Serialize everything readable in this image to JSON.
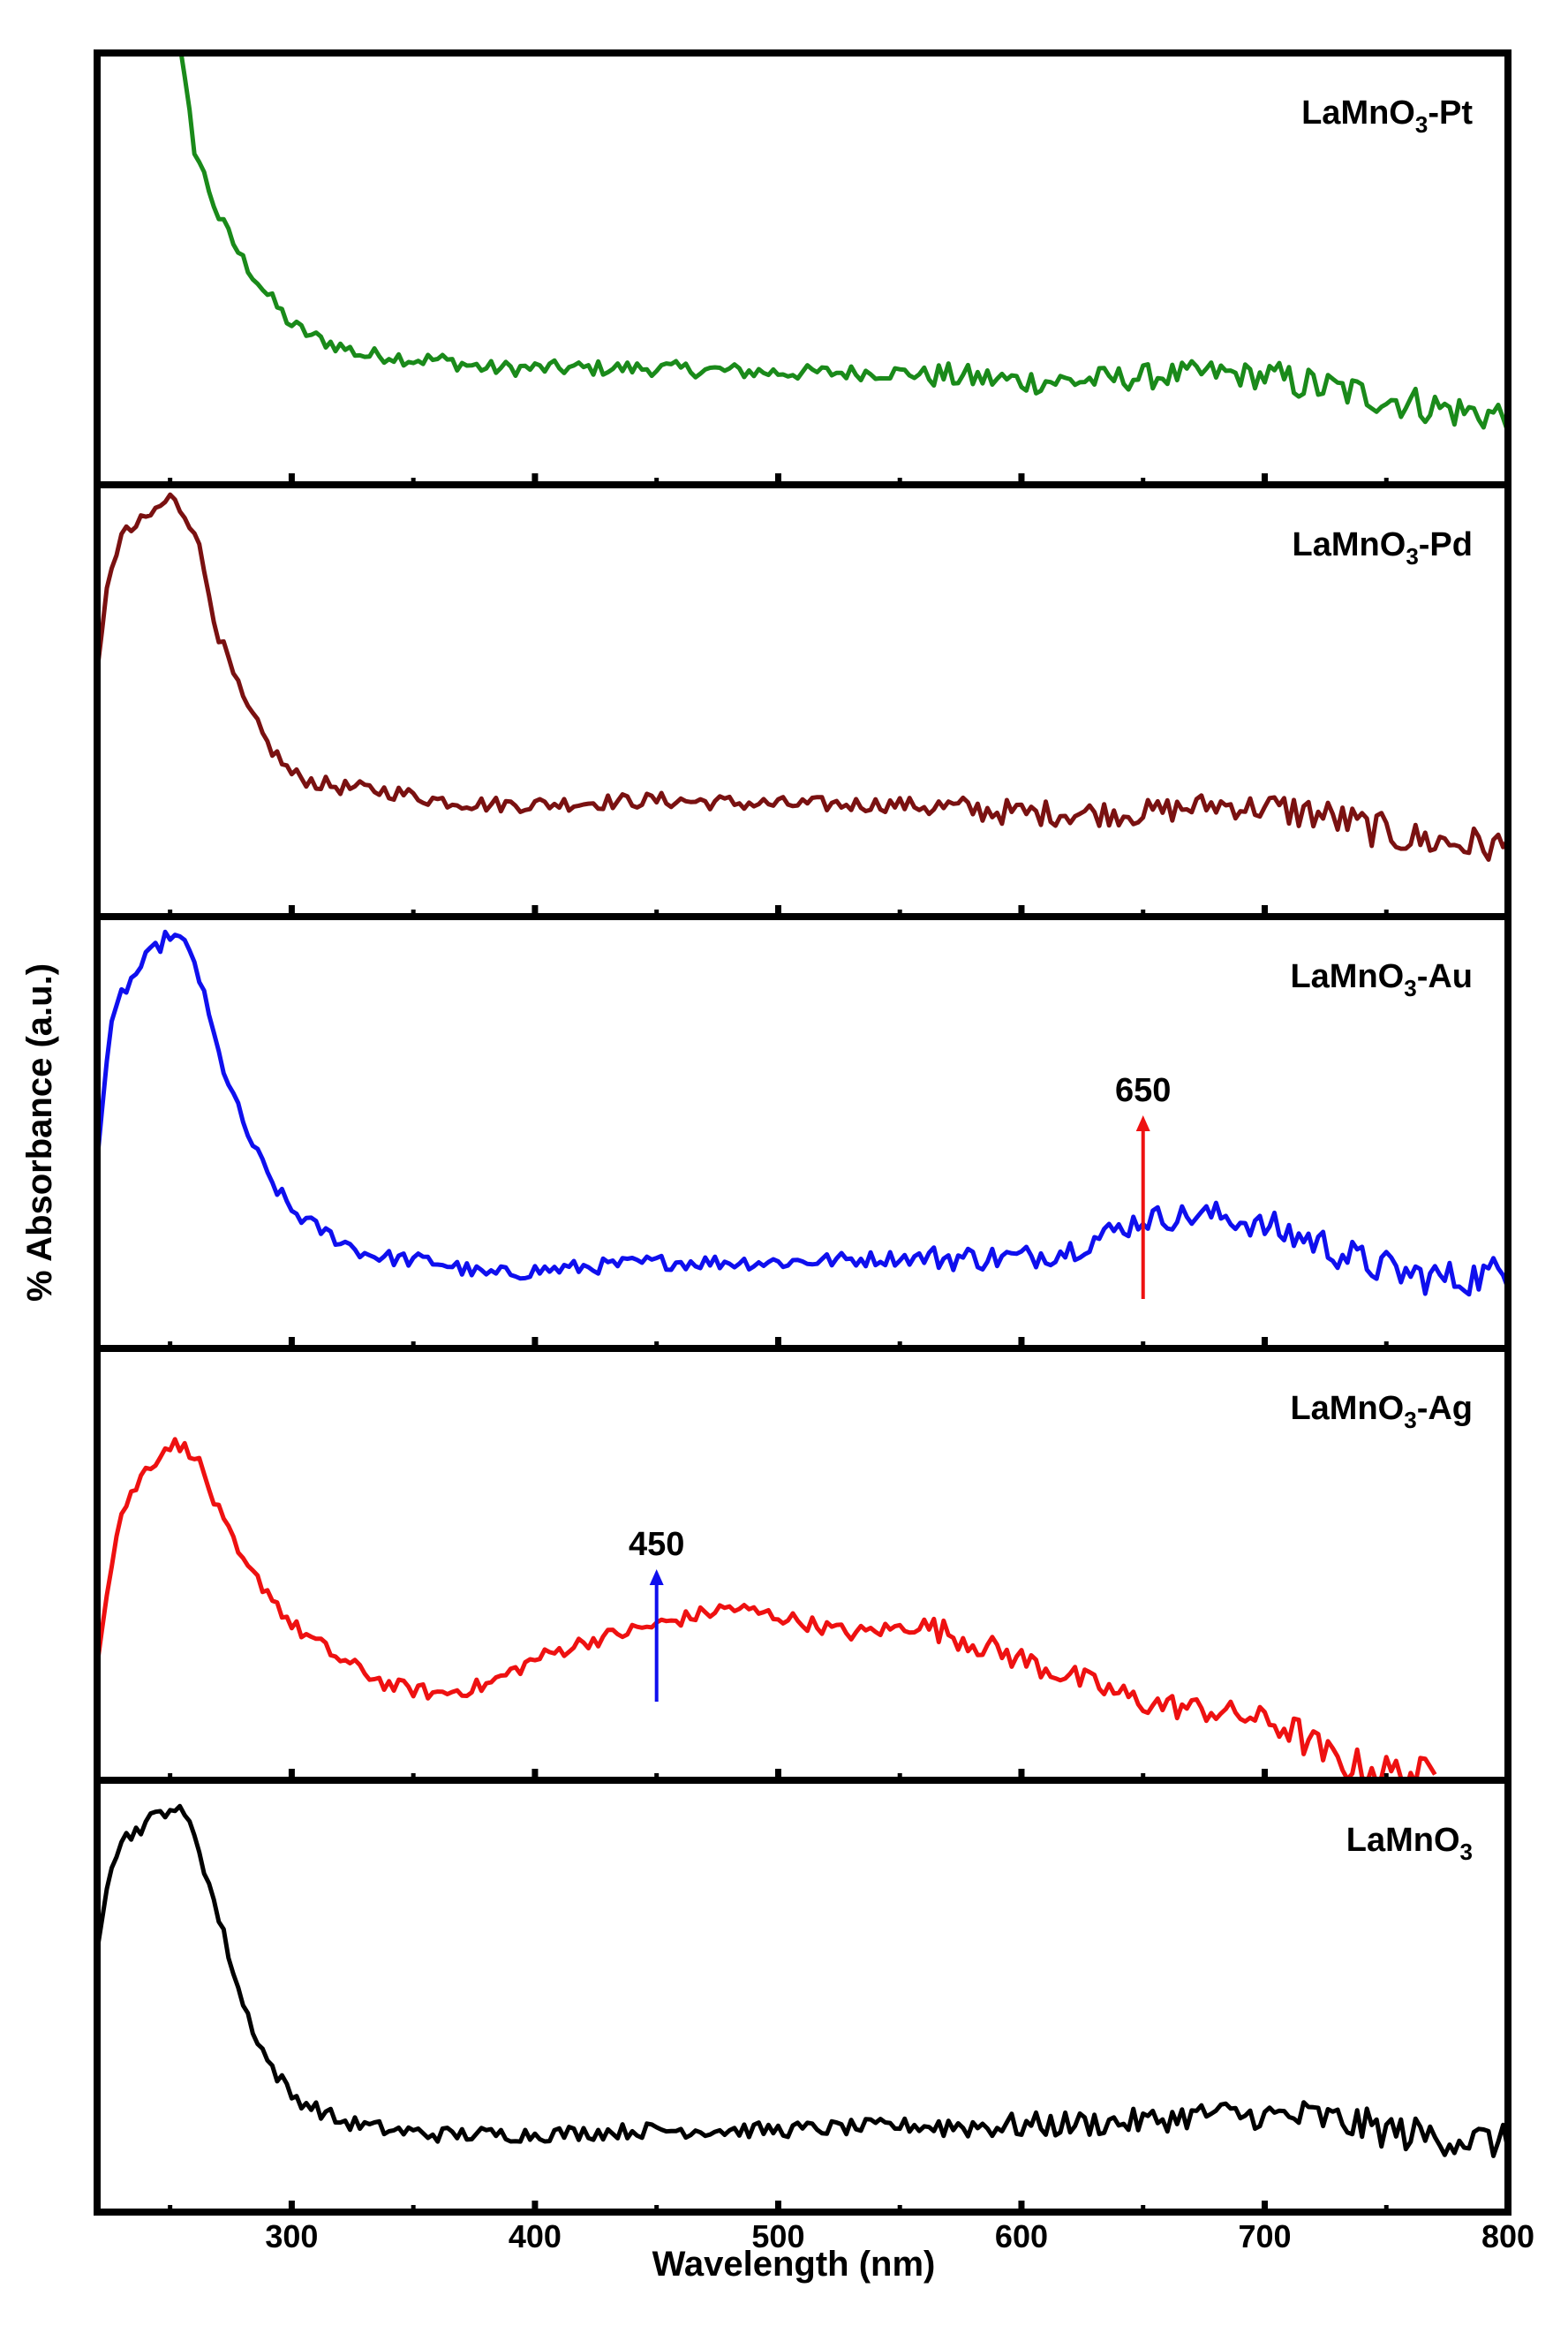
{
  "chart_data": {
    "type": "line",
    "xlabel": "Wavelength (nm)",
    "ylabel": "% Absorbance (a.u.)",
    "xlim": [
      220,
      800
    ],
    "xticks": [
      300,
      400,
      500,
      600,
      700,
      800
    ],
    "grid": false,
    "series": [
      {
        "name": "LaMnO3-Pt",
        "label_main": "LaMnO",
        "label_sub": "3",
        "label_suffix": "-Pt",
        "color": "#1a8a1a",
        "x": [
          220,
          230,
          240,
          250,
          260,
          270,
          280,
          290,
          300,
          310,
          320,
          330,
          340,
          350,
          360,
          380,
          400,
          420,
          450,
          500,
          550,
          600,
          620,
          650,
          680,
          700,
          720,
          740,
          760,
          780,
          800
        ],
        "y": [
          0.99,
          1.1,
          1.16,
          1.16,
          0.78,
          0.62,
          0.52,
          0.44,
          0.37,
          0.34,
          0.32,
          0.3,
          0.3,
          0.29,
          0.29,
          0.27,
          0.27,
          0.27,
          0.27,
          0.26,
          0.26,
          0.24,
          0.24,
          0.25,
          0.26,
          0.25,
          0.23,
          0.21,
          0.19,
          0.17,
          0.16
        ]
      },
      {
        "name": "LaMnO3-Pd",
        "label_main": "LaMnO",
        "label_sub": "3",
        "label_suffix": "-Pd",
        "color": "#7a1111",
        "x": [
          220,
          225,
          230,
          240,
          250,
          255,
          260,
          270,
          280,
          290,
          300,
          310,
          320,
          340,
          360,
          380,
          400,
          450,
          500,
          550,
          600,
          650,
          680,
          700,
          720,
          740,
          760,
          780,
          800
        ],
        "y": [
          0.55,
          0.8,
          0.88,
          0.92,
          0.97,
          0.94,
          0.9,
          0.65,
          0.5,
          0.4,
          0.33,
          0.31,
          0.3,
          0.29,
          0.27,
          0.26,
          0.26,
          0.27,
          0.26,
          0.26,
          0.24,
          0.24,
          0.26,
          0.25,
          0.24,
          0.21,
          0.18,
          0.17,
          0.16
        ]
      },
      {
        "name": "LaMnO3-Au",
        "label_main": "LaMnO",
        "label_sub": "3",
        "label_suffix": "-Au",
        "color": "#0f0fee",
        "x": [
          220,
          225,
          230,
          240,
          250,
          255,
          260,
          270,
          280,
          290,
          300,
          310,
          320,
          330,
          340,
          360,
          380,
          400,
          450,
          500,
          550,
          600,
          620,
          650,
          680,
          700,
          720,
          740,
          760,
          780,
          800
        ],
        "y": [
          0.45,
          0.72,
          0.82,
          0.9,
          0.96,
          0.94,
          0.9,
          0.68,
          0.52,
          0.4,
          0.32,
          0.28,
          0.25,
          0.22,
          0.21,
          0.2,
          0.17,
          0.18,
          0.2,
          0.2,
          0.21,
          0.21,
          0.23,
          0.3,
          0.31,
          0.28,
          0.25,
          0.2,
          0.17,
          0.16,
          0.18
        ]
      },
      {
        "name": "LaMnO3-Ag",
        "label_main": "LaMnO",
        "label_sub": "3",
        "label_suffix": "-Ag",
        "color": "#ee1111",
        "x": [
          220,
          225,
          230,
          240,
          250,
          260,
          270,
          280,
          290,
          300,
          310,
          320,
          340,
          360,
          380,
          400,
          420,
          450,
          480,
          500,
          530,
          560,
          600,
          620,
          650,
          680,
          700,
          710,
          720,
          730,
          750,
          770
        ],
        "y": [
          0.28,
          0.48,
          0.62,
          0.72,
          0.78,
          0.76,
          0.62,
          0.5,
          0.44,
          0.36,
          0.32,
          0.28,
          0.22,
          0.2,
          0.22,
          0.28,
          0.32,
          0.36,
          0.4,
          0.38,
          0.34,
          0.36,
          0.28,
          0.24,
          0.18,
          0.16,
          0.14,
          0.12,
          0.08,
          0.04,
          0.02,
          0.01
        ]
      },
      {
        "name": "LaMnO3",
        "label_main": "LaMnO",
        "label_sub": "3",
        "label_suffix": "",
        "color": "#000000",
        "x": [
          220,
          225,
          230,
          240,
          250,
          255,
          260,
          270,
          280,
          290,
          300,
          310,
          320,
          340,
          360,
          380,
          400,
          450,
          500,
          550,
          600,
          650,
          680,
          700,
          720,
          740,
          760,
          780,
          800
        ],
        "y": [
          0.62,
          0.8,
          0.86,
          0.9,
          0.94,
          0.92,
          0.88,
          0.68,
          0.48,
          0.35,
          0.27,
          0.24,
          0.21,
          0.19,
          0.18,
          0.18,
          0.18,
          0.19,
          0.19,
          0.2,
          0.2,
          0.21,
          0.23,
          0.22,
          0.22,
          0.2,
          0.18,
          0.17,
          0.16
        ]
      }
    ],
    "annotations": [
      {
        "panel": "LaMnO3-Au",
        "text": "650",
        "x": 650,
        "color": "#ee1111"
      },
      {
        "panel": "LaMnO3-Ag",
        "text": "450",
        "x": 450,
        "color": "#0f0fee"
      }
    ]
  }
}
